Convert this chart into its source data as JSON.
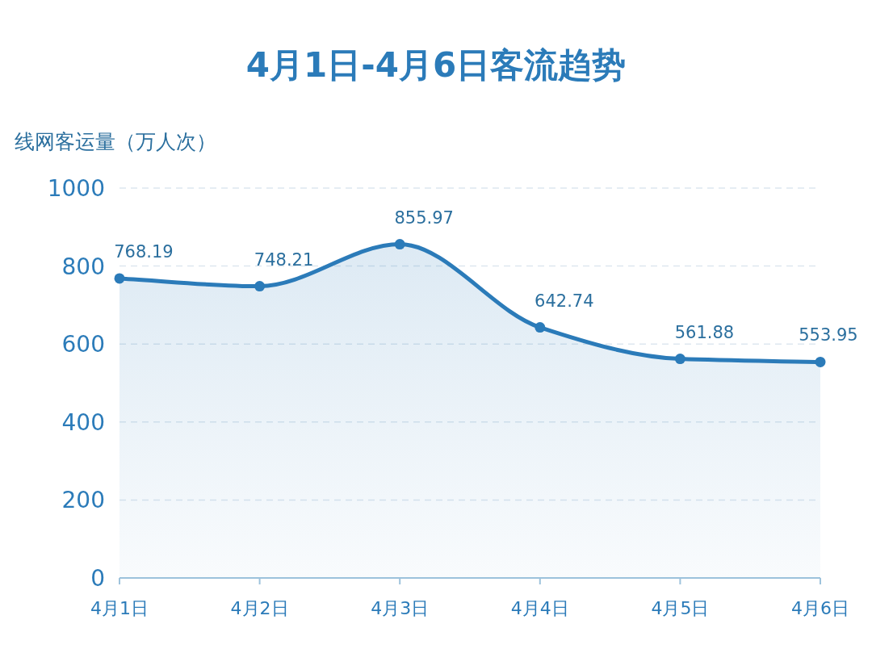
{
  "chart_data": {
    "type": "area",
    "title": "4月1日-4月6日客流趋势",
    "ylabel": "线网客运量（万人次）",
    "categories": [
      "4月1日",
      "4月2日",
      "4月3日",
      "4月4日",
      "4月5日",
      "4月6日"
    ],
    "values": [
      768.19,
      748.21,
      855.97,
      642.74,
      561.88,
      553.95
    ],
    "color": "#2b7bb9",
    "ylim": [
      0,
      1000
    ],
    "yticks": [
      0,
      200,
      400,
      600,
      800,
      1000
    ],
    "grid": "y",
    "marker": "circle",
    "data_labels": true
  }
}
